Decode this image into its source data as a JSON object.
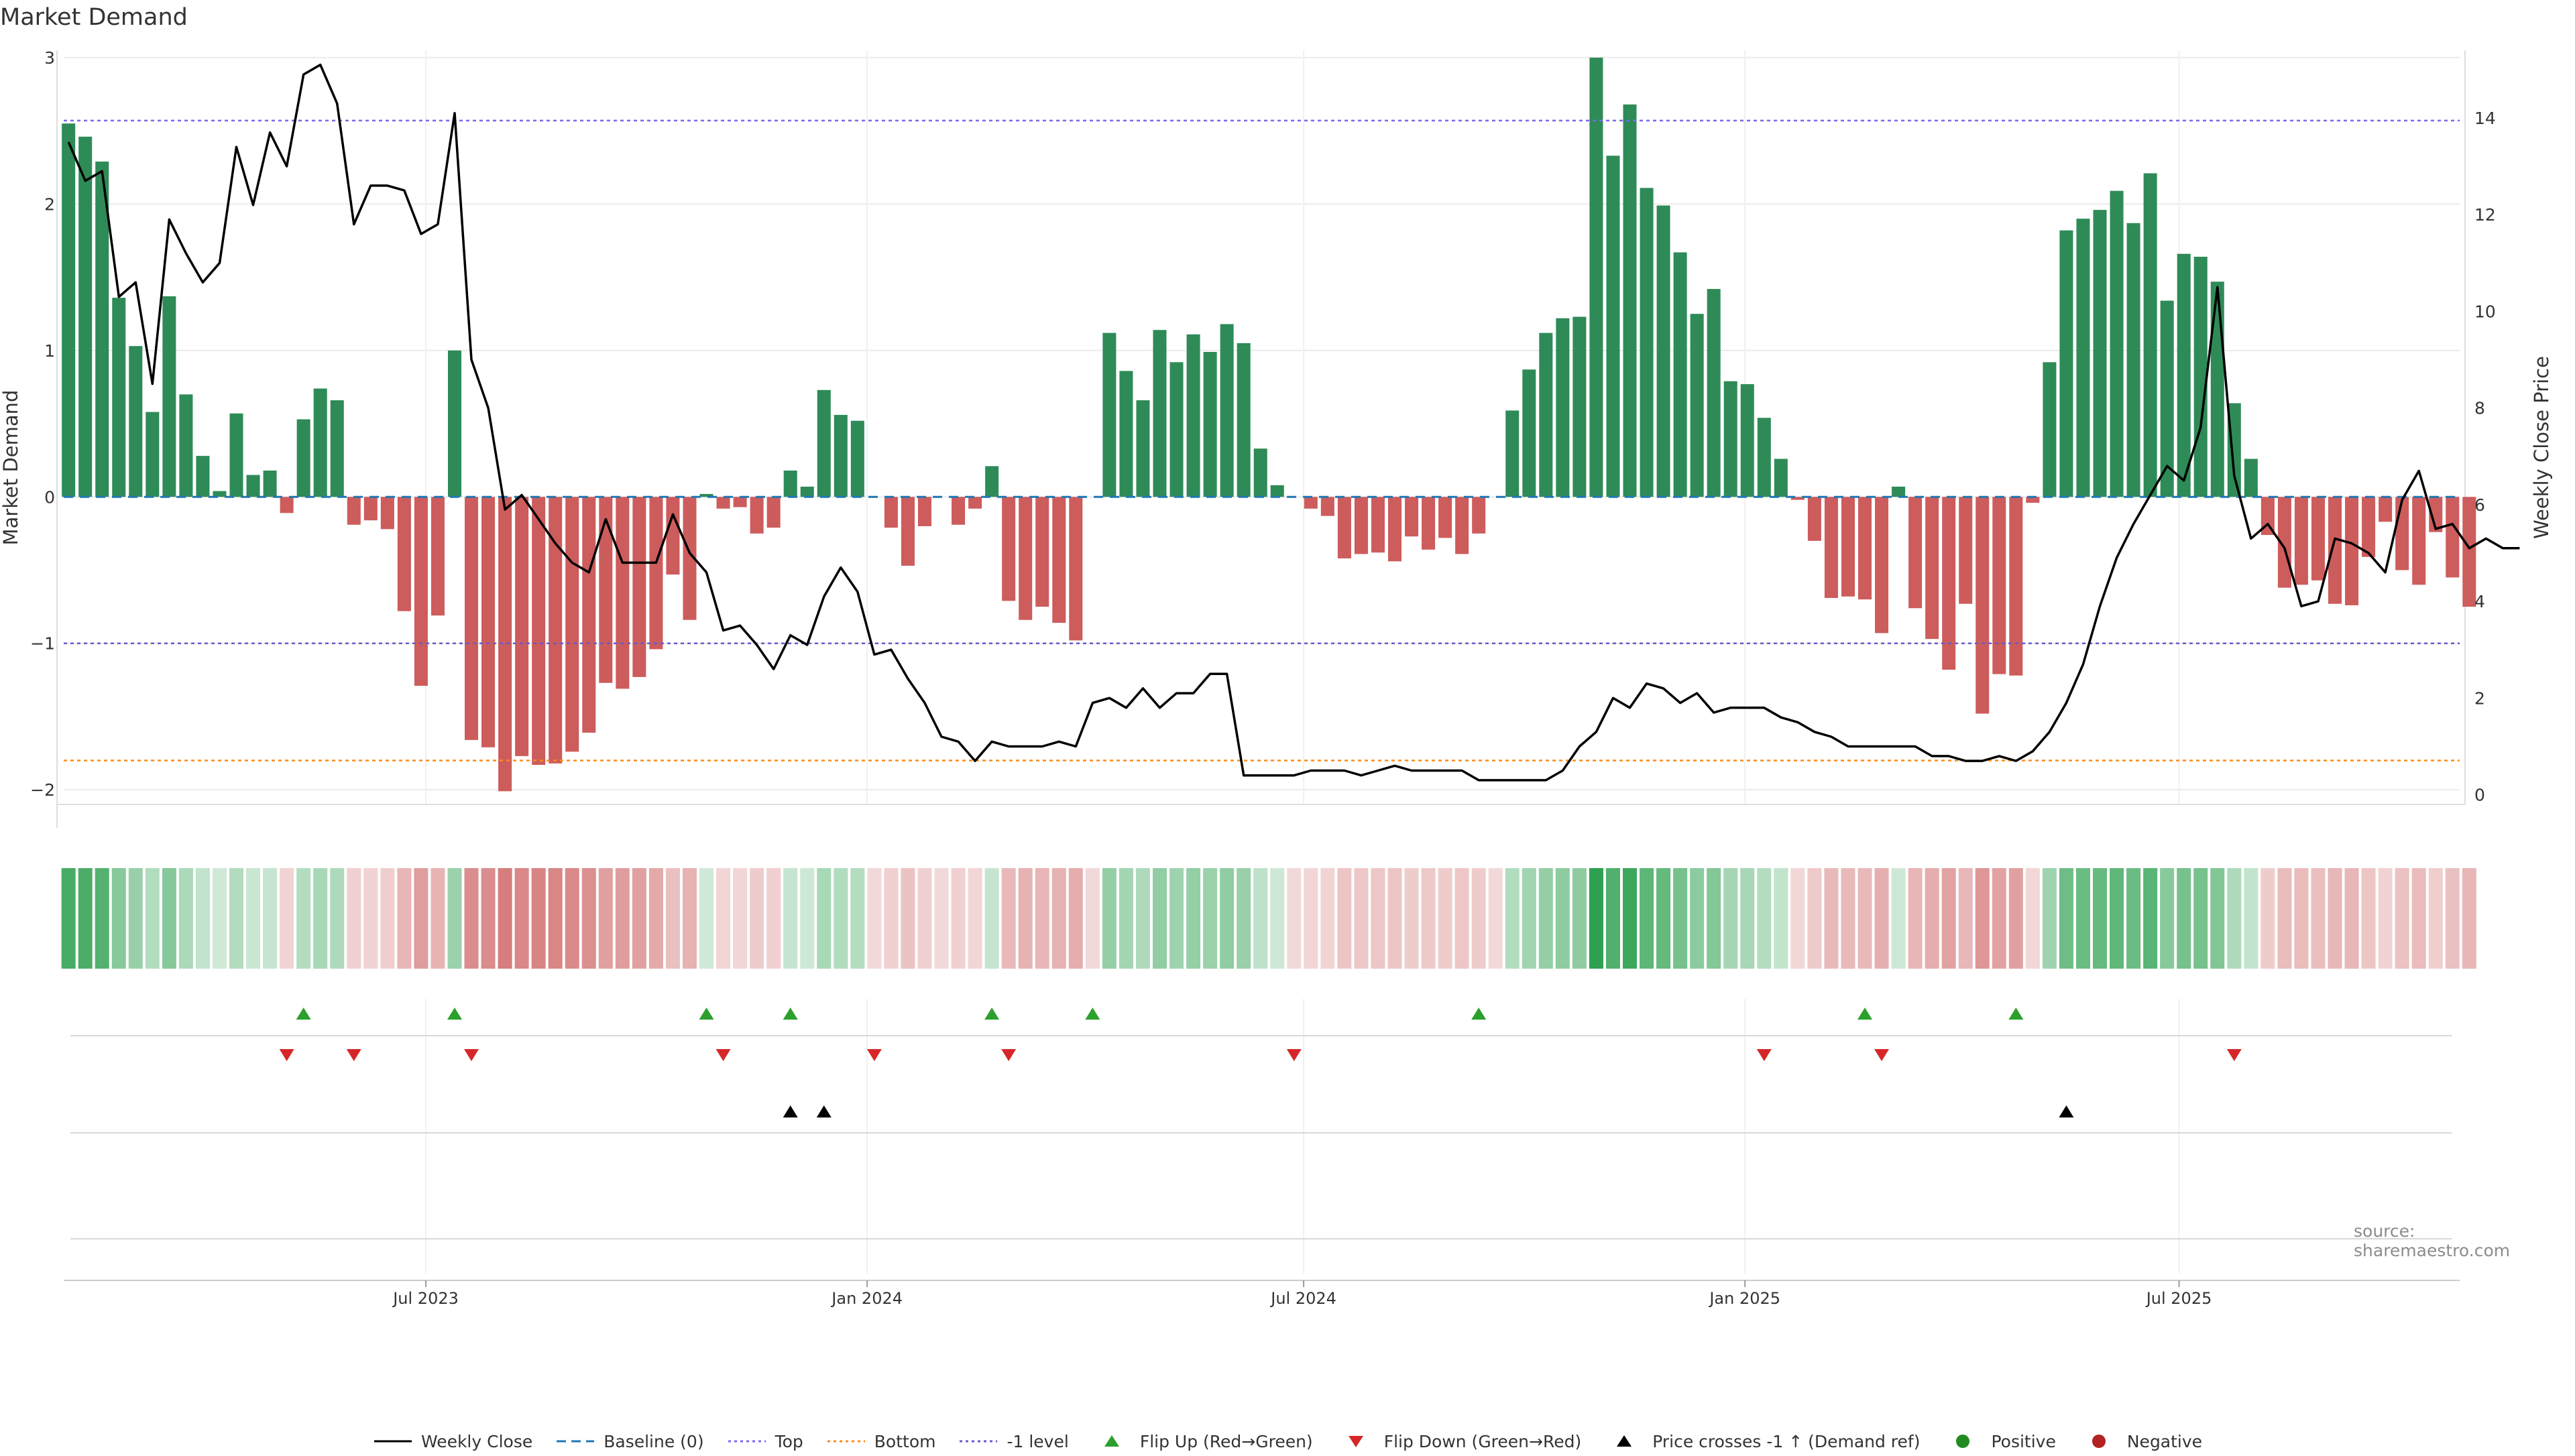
{
  "title": "Market Demand",
  "watermark": "source: sharemaestro.com",
  "colors": {
    "positive_bar": "#2e8b57",
    "negative_bar": "#cd5c5c",
    "price_line": "#000000",
    "baseline": "#1f77b4",
    "top_line": "#7b68ee",
    "bottom_line": "#ff8c1a",
    "minus1_line": "#6a5acd",
    "flip_up": "#2ca02c",
    "flip_down": "#d62728",
    "cross_marker": "#000000",
    "positive_dot": "#228b22",
    "negative_dot": "#b22222"
  },
  "legend": [
    {
      "label": "Weekly Close",
      "kind": "line",
      "color": "#000000",
      "icon": "solid-line"
    },
    {
      "label": "Baseline (0)",
      "kind": "dash",
      "color": "#1f77b4",
      "icon": "dashed-line"
    },
    {
      "label": "Top",
      "kind": "dot",
      "color": "#7b68ee",
      "icon": "dotted-line"
    },
    {
      "label": "Bottom",
      "kind": "dot",
      "color": "#ff8c1a",
      "icon": "dotted-line"
    },
    {
      "label": "-1 level",
      "kind": "dot",
      "color": "#6a5acd",
      "icon": "dotted-line"
    },
    {
      "label": "Flip Up (Red→Green)",
      "kind": "tri-up",
      "color": "#2ca02c",
      "icon": "triangle-up-icon"
    },
    {
      "label": "Flip Down (Green→Red)",
      "kind": "tri-down",
      "color": "#d62728",
      "icon": "triangle-down-icon"
    },
    {
      "label": "Price crosses -1 ↑ (Demand ref)",
      "kind": "tri-up",
      "color": "#000000",
      "icon": "triangle-up-icon"
    },
    {
      "label": "Positive",
      "kind": "circle",
      "color": "#228b22",
      "icon": "circle-icon"
    },
    {
      "label": "Negative",
      "kind": "circle",
      "color": "#b22222",
      "icon": "circle-icon"
    }
  ],
  "chart_data": {
    "type": "bar",
    "title": "Market Demand",
    "ylabel": "Market Demand",
    "y2label": "Weekly Close Price",
    "ylim": [
      -2.1,
      3.05
    ],
    "y2lim": [
      -0.2,
      15.4
    ],
    "yticks": [
      -2,
      -1,
      0,
      1,
      2,
      3
    ],
    "y2ticks": [
      0,
      2,
      4,
      6,
      8,
      10,
      12,
      14
    ],
    "reference_lines": {
      "baseline": 0,
      "top": 2.57,
      "bottom": -1.8,
      "minus1": -1
    },
    "x_start": "2023-02-02",
    "x_step_days": 7,
    "x_range": [
      "2023-01-31",
      "2025-10-26"
    ],
    "x_ticks": [
      "Jul 2023",
      "Jan 2024",
      "Jul 2024",
      "Jan 2025",
      "Jul 2025"
    ],
    "x_tick_dates": [
      "2023-07-01",
      "2024-01-01",
      "2024-07-01",
      "2025-01-01",
      "2025-07-01"
    ],
    "series": [
      {
        "name": "Market Demand",
        "type": "bar",
        "values": [
          2.55,
          2.46,
          2.29,
          1.36,
          1.03,
          0.58,
          1.37,
          0.7,
          0.28,
          0.04,
          0.57,
          0.15,
          0.18,
          -0.11,
          0.53,
          0.74,
          0.66,
          -0.19,
          -0.16,
          -0.22,
          -0.78,
          -1.29,
          -0.81,
          1.0,
          -1.66,
          -1.71,
          -2.01,
          -1.77,
          -1.83,
          -1.82,
          -1.74,
          -1.61,
          -1.27,
          -1.31,
          -1.23,
          -1.04,
          -0.53,
          -0.84,
          0.02,
          -0.08,
          -0.07,
          -0.25,
          -0.21,
          0.18,
          0.07,
          0.73,
          0.56,
          0.52,
          0.0,
          -0.21,
          -0.47,
          -0.2,
          0.0,
          -0.19,
          -0.08,
          0.21,
          -0.71,
          -0.84,
          -0.75,
          -0.86,
          -0.98,
          0.0,
          1.12,
          0.86,
          0.66,
          1.14,
          0.92,
          1.11,
          0.99,
          1.18,
          1.05,
          0.33,
          0.08,
          0.0,
          -0.08,
          -0.13,
          -0.42,
          -0.39,
          -0.38,
          -0.44,
          -0.27,
          -0.36,
          -0.28,
          -0.39,
          -0.25,
          0.0,
          0.59,
          0.87,
          1.12,
          1.22,
          1.23,
          3.0,
          2.33,
          2.68,
          2.11,
          1.99,
          1.67,
          1.25,
          1.42,
          0.79,
          0.77,
          0.54,
          0.26,
          -0.02,
          -0.3,
          -0.69,
          -0.68,
          -0.7,
          -0.93,
          0.07,
          -0.76,
          -0.97,
          -1.18,
          -0.73,
          -1.48,
          -1.21,
          -1.22,
          -0.04,
          0.92,
          1.82,
          1.9,
          1.96,
          2.09,
          1.87,
          2.21,
          1.34,
          1.66,
          1.64,
          1.47,
          0.64,
          0.26,
          -0.26,
          -0.62,
          -0.6,
          -0.57,
          -0.73,
          -0.74,
          -0.41,
          -0.17,
          -0.5,
          -0.6,
          -0.24,
          -0.55,
          -0.75
        ]
      },
      {
        "name": "Weekly Close",
        "type": "line",
        "axis": "right",
        "values": [
          13.5,
          12.7,
          12.9,
          10.3,
          10.6,
          8.5,
          11.9,
          11.2,
          10.6,
          11.0,
          13.4,
          12.2,
          13.7,
          13.0,
          14.9,
          15.1,
          14.3,
          11.8,
          12.6,
          12.6,
          12.5,
          11.6,
          11.8,
          14.1,
          9.0,
          8.0,
          5.9,
          6.2,
          5.7,
          5.2,
          4.8,
          4.6,
          5.7,
          4.8,
          4.8,
          4.8,
          5.8,
          5.0,
          4.6,
          3.4,
          3.5,
          3.1,
          2.6,
          3.3,
          3.1,
          4.1,
          4.7,
          4.2,
          2.9,
          3.0,
          2.4,
          1.9,
          1.2,
          1.1,
          0.7,
          1.1,
          1.0,
          1.0,
          1.0,
          1.1,
          1.0,
          1.9,
          2.0,
          1.8,
          2.2,
          1.8,
          2.1,
          2.1,
          2.5,
          2.5,
          0.4,
          0.4,
          0.4,
          0.4,
          0.5,
          0.5,
          0.5,
          0.4,
          0.5,
          0.6,
          0.5,
          0.5,
          0.5,
          0.5,
          0.3,
          0.3,
          0.3,
          0.3,
          0.3,
          0.5,
          1.0,
          1.3,
          2.0,
          1.8,
          2.3,
          2.2,
          1.9,
          2.1,
          1.7,
          1.8,
          1.8,
          1.8,
          1.6,
          1.5,
          1.3,
          1.2,
          1.0,
          1.0,
          1.0,
          1.0,
          1.0,
          0.8,
          0.8,
          0.7,
          0.7,
          0.8,
          0.7,
          0.9,
          1.3,
          1.9,
          2.7,
          3.9,
          4.9,
          5.6,
          6.2,
          6.8,
          6.5,
          7.6,
          10.5,
          6.6,
          5.3,
          5.6,
          5.1,
          3.9,
          4.0,
          5.3,
          5.2,
          5.0,
          4.6,
          6.1,
          6.7,
          5.5,
          5.6,
          5.1,
          5.3,
          5.1,
          5.1
        ]
      }
    ],
    "flip_up_indices": [
      14,
      23,
      38,
      43,
      55,
      61,
      84,
      107,
      116
    ],
    "flip_down_indices": [
      13,
      17,
      24,
      39,
      48,
      56,
      73,
      101,
      108,
      129
    ],
    "price_cross_indices": [
      43,
      45,
      119
    ]
  }
}
